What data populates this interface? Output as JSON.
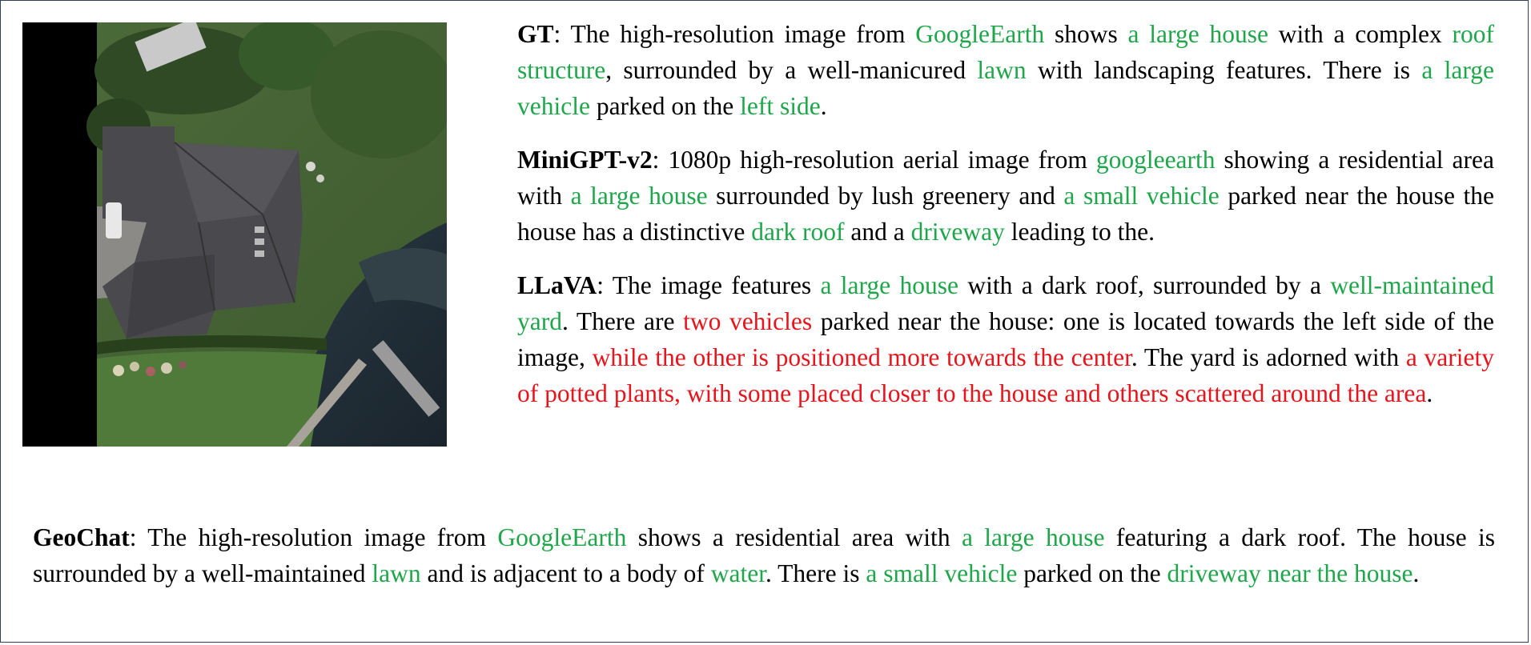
{
  "colors": {
    "correct": "#1fa64a",
    "incorrect": "#e8141b",
    "border": "#2f3e5c"
  },
  "image": {
    "content": "aerial-satellite-image"
  },
  "captions": [
    {
      "label": "GT",
      "segments": [
        {
          "t": ": The high-resolution image from ",
          "c": "n"
        },
        {
          "t": "GoogleEarth",
          "c": "g"
        },
        {
          "t": " shows ",
          "c": "n"
        },
        {
          "t": "a large house",
          "c": "g"
        },
        {
          "t": " with a complex ",
          "c": "n"
        },
        {
          "t": "roof structure",
          "c": "g"
        },
        {
          "t": ", surrounded by a well-manicured ",
          "c": "n"
        },
        {
          "t": "lawn",
          "c": "g"
        },
        {
          "t": " with landscaping features. There is ",
          "c": "n"
        },
        {
          "t": "a large vehicle",
          "c": "g"
        },
        {
          "t": " parked on the ",
          "c": "n"
        },
        {
          "t": "left side",
          "c": "g"
        },
        {
          "t": ".",
          "c": "n"
        }
      ]
    },
    {
      "label": "MiniGPT-v2",
      "segments": [
        {
          "t": ": 1080p high-resolution aerial image from ",
          "c": "n"
        },
        {
          "t": "googleearth",
          "c": "g"
        },
        {
          "t": " showing a residential area with ",
          "c": "n"
        },
        {
          "t": "a large house",
          "c": "g"
        },
        {
          "t": " surrounded by lush greenery and ",
          "c": "n"
        },
        {
          "t": "a small vehicle",
          "c": "g"
        },
        {
          "t": " parked near the house the house has a distinctive ",
          "c": "n"
        },
        {
          "t": "dark roof",
          "c": "g"
        },
        {
          "t": " and a ",
          "c": "n"
        },
        {
          "t": "driveway",
          "c": "g"
        },
        {
          "t": " leading to the.",
          "c": "n"
        }
      ]
    },
    {
      "label": "LLaVA",
      "segments": [
        {
          "t": ": The image features ",
          "c": "n"
        },
        {
          "t": "a large house",
          "c": "g"
        },
        {
          "t": " with a dark roof, surrounded by a ",
          "c": "n"
        },
        {
          "t": "well-maintained yard",
          "c": "g"
        },
        {
          "t": ". There are ",
          "c": "n"
        },
        {
          "t": "two vehicles",
          "c": "r"
        },
        {
          "t": " parked near the house: one is located towards the left side of the image, ",
          "c": "n"
        },
        {
          "t": "while the other is positioned more towards the center",
          "c": "r"
        },
        {
          "t": ". The yard is adorned with ",
          "c": "n"
        },
        {
          "t": "a variety of potted plants, with some placed closer to the house and others scattered around the area",
          "c": "r"
        },
        {
          "t": ".",
          "c": "n"
        }
      ]
    },
    {
      "label": "GeoChat",
      "segments": [
        {
          "t": ": The high-resolution image from ",
          "c": "n"
        },
        {
          "t": "GoogleEarth",
          "c": "g"
        },
        {
          "t": " shows a residential area with ",
          "c": "n"
        },
        {
          "t": "a large house",
          "c": "g"
        },
        {
          "t": " featuring a dark roof. The house is surrounded by a well-maintained ",
          "c": "n"
        },
        {
          "t": "lawn",
          "c": "g"
        },
        {
          "t": " and is adjacent to a body of ",
          "c": "n"
        },
        {
          "t": "water",
          "c": "g"
        },
        {
          "t": ". There is ",
          "c": "n"
        },
        {
          "t": "a small vehicle",
          "c": "g"
        },
        {
          "t": " parked on the ",
          "c": "n"
        },
        {
          "t": "driveway near the house",
          "c": "g"
        },
        {
          "t": ".",
          "c": "n"
        }
      ]
    }
  ]
}
